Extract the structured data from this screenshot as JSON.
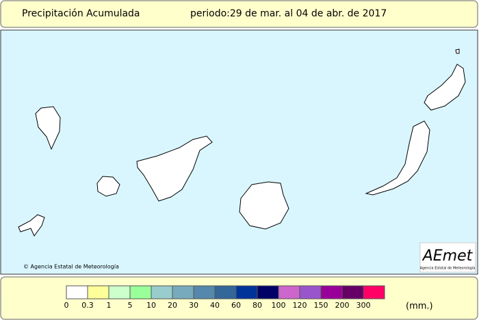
{
  "header": {
    "title": "Precipitación Acumulada",
    "period": "periodo:29 de mar. al 04 de abr. de 2017"
  },
  "map": {
    "copyright": "© Agencia Estatal de Meteorología",
    "logo": "AEmet",
    "logo_subtitle": "Agencia Estatal de Meteorología"
  },
  "legend": {
    "unit": "(mm.)",
    "items": [
      {
        "label": 0,
        "color": "#ffffff"
      },
      {
        "label": 0.3,
        "color": "#ffff99"
      },
      {
        "label": 1,
        "color": "#ccffcc"
      },
      {
        "label": 5,
        "color": "#99ff99"
      },
      {
        "label": 10,
        "color": "#99cccc"
      },
      {
        "label": 20,
        "color": "#77aabb"
      },
      {
        "label": 30,
        "color": "#5588aa"
      },
      {
        "label": 40,
        "color": "#336699"
      },
      {
        "label": 60,
        "color": "#003399"
      },
      {
        "label": 80,
        "color": "#000066"
      },
      {
        "label": 100,
        "color": "#cc66cc"
      },
      {
        "label": 120,
        "color": "#9955cc"
      },
      {
        "label": 150,
        "color": "#990099"
      },
      {
        "label": 200,
        "color": "#660066"
      },
      {
        "label": 300,
        "color": "#ff0066"
      }
    ]
  }
}
